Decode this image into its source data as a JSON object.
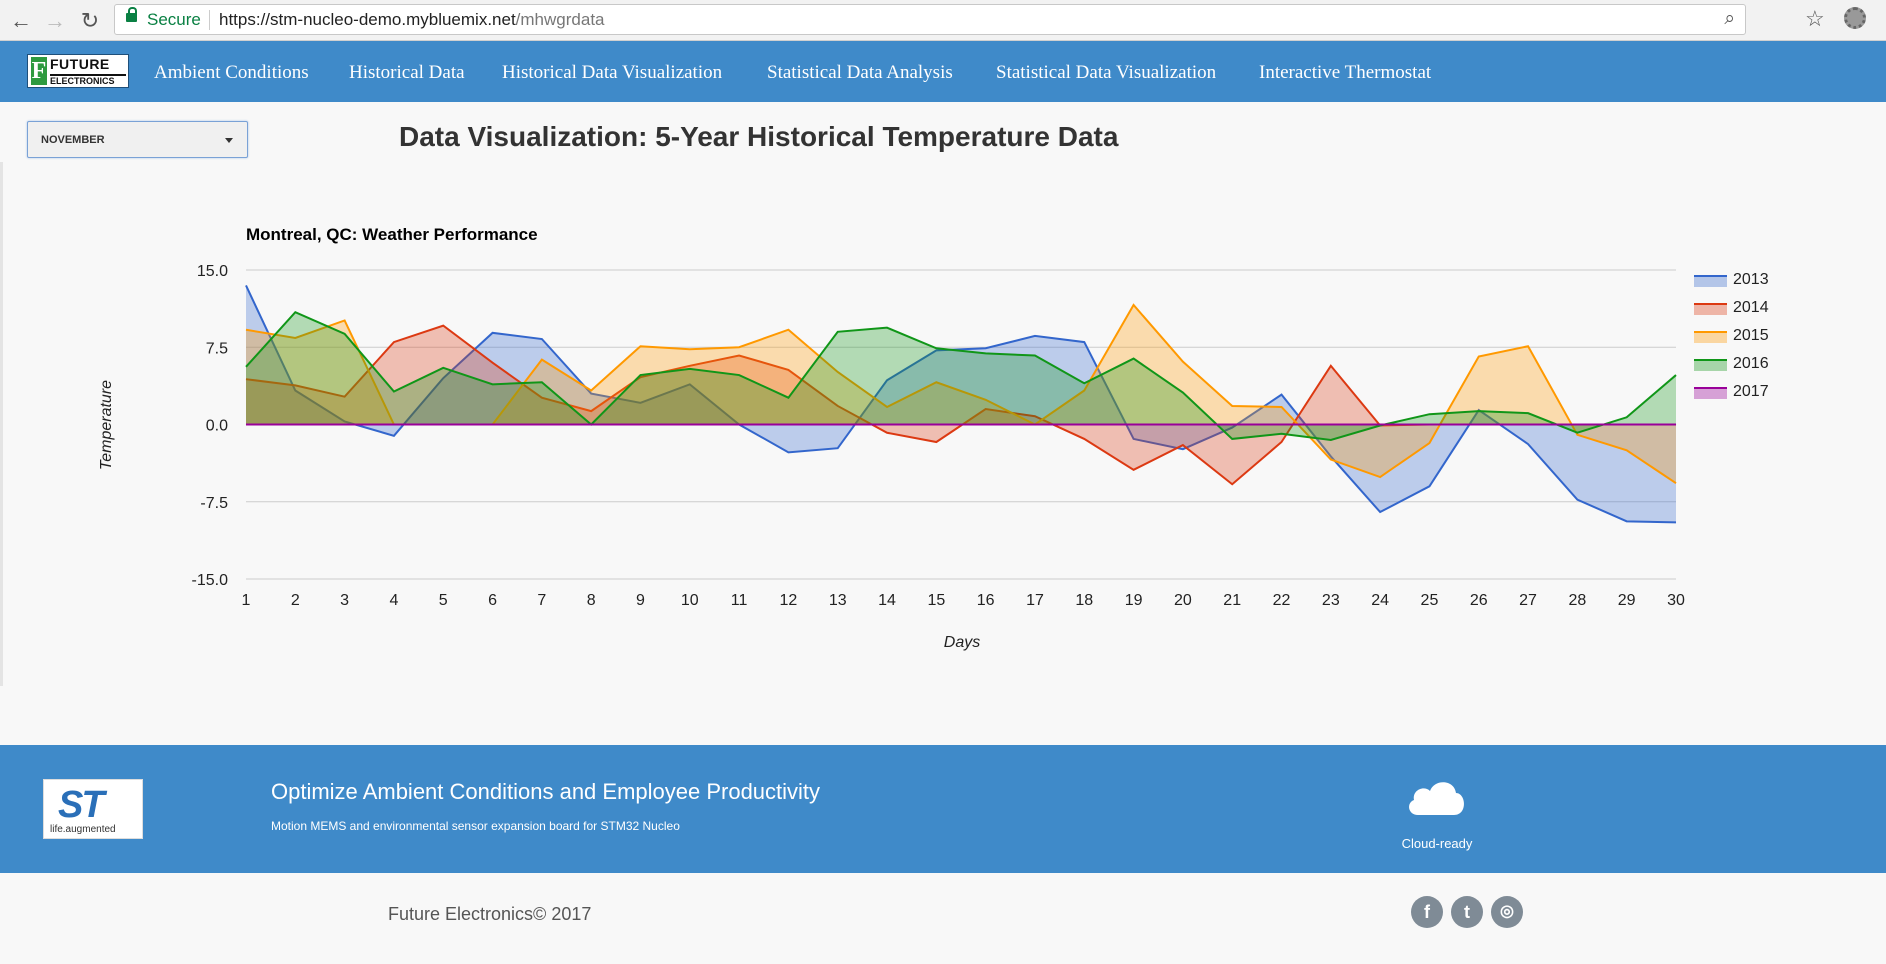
{
  "browser": {
    "secure_label": "Secure",
    "url_host": "https://stm-nucleo-demo.mybluemix.net",
    "url_path": "/mhwgrdata"
  },
  "logo": {
    "word1": "FUTURE",
    "word2": "ELECTRONICS",
    "letter": "F"
  },
  "nav": {
    "items": [
      {
        "label": "Ambient Conditions"
      },
      {
        "label": "Historical Data"
      },
      {
        "label": "Historical Data Visualization"
      },
      {
        "label": "Statistical Data Analysis"
      },
      {
        "label": "Statistical Data Visualization"
      },
      {
        "label": "Interactive Thermostat"
      }
    ]
  },
  "month_select": {
    "value": "NOVEMBER"
  },
  "page_title": "Data Visualization: 5-Year Historical Temperature Data",
  "chart_data": {
    "type": "area",
    "title": "Montreal, QC: Weather Performance",
    "xlabel": "Days",
    "ylabel": "Temperature",
    "x": [
      1,
      2,
      3,
      4,
      5,
      6,
      7,
      8,
      9,
      10,
      11,
      12,
      13,
      14,
      15,
      16,
      17,
      18,
      19,
      20,
      21,
      22,
      23,
      24,
      25,
      26,
      27,
      28,
      29,
      30
    ],
    "ylim": [
      -15,
      15
    ],
    "yticks": [
      "15.0",
      "7.5",
      "0.0",
      "-7.5",
      "-15.0"
    ],
    "ytick_values": [
      15,
      7.5,
      0,
      -7.5,
      -15
    ],
    "grid": true,
    "legend_position": "right",
    "series": [
      {
        "name": "2013",
        "color": "#3366cc",
        "values": [
          13.5,
          3.3,
          0.3,
          -1.1,
          4.5,
          8.9,
          8.3,
          3.0,
          2.1,
          3.9,
          0.0,
          -2.7,
          -2.3,
          4.3,
          7.2,
          7.4,
          8.6,
          8.0,
          -1.4,
          -2.4,
          -0.3,
          2.9,
          -3.1,
          -8.5,
          -6.0,
          1.4,
          -1.9,
          -7.3,
          -9.4,
          -9.5
        ]
      },
      {
        "name": "2014",
        "color": "#dc3912",
        "values": [
          4.4,
          3.8,
          2.7,
          8.0,
          9.6,
          6.0,
          2.6,
          1.3,
          4.6,
          5.7,
          6.7,
          5.3,
          1.8,
          -0.8,
          -1.7,
          1.5,
          0.8,
          -1.4,
          -4.4,
          -2.0,
          -5.8,
          -1.7,
          5.7,
          -0.1,
          0.0,
          0.0,
          0.0,
          0.0,
          0.0,
          0.0
        ]
      },
      {
        "name": "2015",
        "color": "#ff9900",
        "values": [
          9.2,
          8.4,
          10.1,
          0.0,
          0.0,
          0.0,
          6.3,
          3.3,
          7.6,
          7.3,
          7.5,
          9.2,
          5.1,
          1.7,
          4.1,
          2.4,
          0.0,
          3.3,
          11.6,
          6.1,
          1.8,
          1.7,
          -3.4,
          -5.1,
          -1.8,
          6.6,
          7.6,
          -1.0,
          -2.5,
          -5.7
        ]
      },
      {
        "name": "2016",
        "color": "#109618",
        "values": [
          5.6,
          10.9,
          8.8,
          3.2,
          5.5,
          3.9,
          4.1,
          0.0,
          4.8,
          5.4,
          4.8,
          2.6,
          9.0,
          9.4,
          7.4,
          6.9,
          6.7,
          4.0,
          6.4,
          3.1,
          -1.4,
          -0.9,
          -1.5,
          -0.1,
          1.0,
          1.3,
          1.1,
          -0.8,
          0.7,
          4.8
        ]
      },
      {
        "name": "2017",
        "color": "#990099",
        "values": [
          0,
          0,
          0,
          0,
          0,
          0,
          0,
          0,
          0,
          0,
          0,
          0,
          0,
          0,
          0,
          0,
          0,
          0,
          0,
          0,
          0,
          0,
          0,
          0,
          0,
          0,
          0,
          0,
          0,
          0
        ]
      }
    ]
  },
  "footer": {
    "title": "Optimize Ambient Conditions and Employee Productivity",
    "subtitle": "Motion MEMS and environmental sensor expansion board for STM32 Nucleo",
    "cloud_label": "Cloud-ready",
    "st_logo_text": "ST",
    "st_tagline": "life.augmented"
  },
  "copyright": "Future Electronics© 2017",
  "social": [
    {
      "glyph": "f",
      "icon": "facebook-icon"
    },
    {
      "glyph": "t",
      "icon": "twitter-icon"
    },
    {
      "glyph": "◎",
      "icon": "instagram-icon"
    }
  ]
}
